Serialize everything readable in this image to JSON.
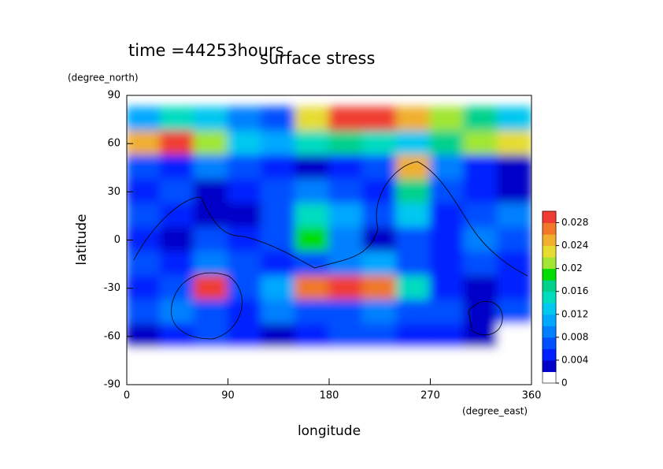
{
  "chart_data": {
    "type": "contour",
    "title": "surface stress",
    "subtitle": "time =44253hours",
    "x_label": "longitude",
    "x_unit": "(degree_east)",
    "y_label": "latitude",
    "y_unit": "(degree_north)",
    "xlim": [
      0,
      360
    ],
    "xticks": [
      0,
      90,
      180,
      270,
      360
    ],
    "ylim": [
      -90,
      90
    ],
    "yticks": [
      -90,
      -60,
      -30,
      0,
      30,
      60,
      90
    ],
    "x": [
      15,
      45,
      75,
      105,
      135,
      165,
      195,
      225,
      255,
      285,
      315,
      345
    ],
    "y": [
      75,
      60,
      45,
      30,
      15,
      0,
      -15,
      -30,
      -45,
      -60,
      -75
    ],
    "z": [
      [
        0.01,
        0.014,
        0.012,
        0.008,
        0.006,
        0.022,
        0.03,
        0.03,
        0.024,
        0.02,
        0.016,
        0.012
      ],
      [
        0.024,
        0.03,
        0.02,
        0.012,
        0.01,
        0.014,
        0.016,
        0.014,
        0.012,
        0.016,
        0.02,
        0.022
      ],
      [
        0.006,
        0.004,
        0.008,
        0.006,
        0.004,
        0.002,
        0.004,
        0.006,
        0.024,
        0.008,
        0.004,
        0.002
      ],
      [
        0.004,
        0.006,
        0.002,
        0.004,
        0.006,
        0.008,
        0.006,
        0.004,
        0.016,
        0.006,
        0.004,
        0.002
      ],
      [
        0.006,
        0.004,
        0.002,
        0.002,
        0.006,
        0.014,
        0.01,
        0.006,
        0.012,
        0.004,
        0.006,
        0.008
      ],
      [
        0.004,
        0.002,
        0.006,
        0.004,
        0.006,
        0.018,
        0.008,
        0.002,
        0.006,
        0.004,
        0.008,
        0.006
      ],
      [
        0.006,
        0.004,
        0.008,
        0.006,
        0.004,
        0.006,
        0.008,
        0.01,
        0.006,
        0.004,
        0.006,
        0.004
      ],
      [
        0.004,
        0.006,
        0.028,
        0.006,
        0.01,
        0.026,
        0.03,
        0.026,
        0.014,
        0.004,
        0.002,
        0.004
      ],
      [
        0.006,
        0.008,
        0.006,
        0.004,
        0.008,
        0.006,
        0.006,
        0.008,
        0.006,
        0.006,
        0.002,
        0.006
      ],
      [
        0.002,
        0.004,
        0.006,
        0.004,
        0.002,
        0.004,
        0.006,
        0.006,
        0.004,
        0.004,
        0.002,
        0
      ],
      [
        0,
        0,
        0,
        0,
        0,
        0,
        0,
        0,
        0,
        0,
        0,
        0
      ]
    ],
    "levels": [
      0,
      0.002,
      0.004,
      0.006,
      0.008,
      0.01,
      0.012,
      0.014,
      0.016,
      0.018,
      0.02,
      0.022,
      0.024,
      0.026,
      0.028
    ],
    "colors": [
      "#ffffff",
      "#0000c8",
      "#0020ff",
      "#0050ff",
      "#0080ff",
      "#00a8ff",
      "#00c8f0",
      "#00dcc0",
      "#00d28c",
      "#00dc00",
      "#a0e632",
      "#e6dc32",
      "#f0af2d",
      "#f07828",
      "#f03c32"
    ],
    "colorbar_ticks": [
      0,
      0.004,
      0.008,
      0.012,
      0.016,
      0.02,
      0.024,
      0.028
    ]
  }
}
